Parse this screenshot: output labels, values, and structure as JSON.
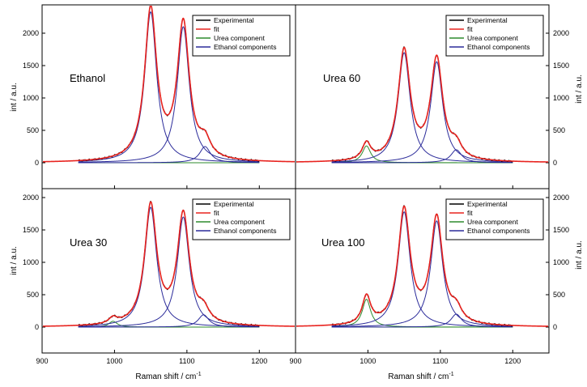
{
  "figure": {
    "xlabel": "Raman shift / cm",
    "xlabel_sup": "-1",
    "ylabel": "int / a.u.",
    "legend": [
      "Experimental",
      "fit",
      "Urea component",
      "Ethanol components"
    ],
    "colors": {
      "experimental": "#000000",
      "fit": "#e8231f",
      "urea": "#2e8b2e",
      "ethanol": "#2b2b9a"
    }
  },
  "chart_data": [
    {
      "type": "line",
      "label": "Ethanol",
      "xlim": [
        900,
        1250
      ],
      "ylim": [
        -300,
        2400
      ],
      "xticks": [
        900,
        1000,
        1100,
        1200
      ],
      "yticks": [
        0,
        500,
        1000,
        1500,
        2000
      ],
      "grid": false,
      "legend_position": "top-right",
      "ethanol_peaks": [
        [
          1050,
          2330,
          10
        ],
        [
          1095,
          2100,
          10
        ],
        [
          1125,
          250,
          9
        ]
      ],
      "urea_peaks": [],
      "fit_peak_values": {
        "1050": 2380,
        "1095": 2250,
        "1070": 950
      },
      "fit_range": [
        900,
        1250
      ],
      "components_range": [
        950,
        1200
      ]
    },
    {
      "type": "line",
      "label": "Urea 60",
      "xlim": [
        900,
        1250
      ],
      "ylim": [
        -300,
        2400
      ],
      "xticks": [
        900,
        1000,
        1100,
        1200
      ],
      "yticks": [
        0,
        500,
        1000,
        1500,
        2000
      ],
      "grid": false,
      "legend_position": "top-right",
      "ethanol_peaks": [
        [
          1050,
          1700,
          10
        ],
        [
          1095,
          1560,
          10
        ],
        [
          1122,
          200,
          9
        ]
      ],
      "urea_peaks": [
        [
          998,
          260,
          7
        ]
      ],
      "fit_peak_values": {
        "998": 350,
        "1050": 1800,
        "1095": 1680
      },
      "fit_range": [
        900,
        1250
      ],
      "components_range": [
        950,
        1200
      ]
    },
    {
      "type": "line",
      "label": "Urea 30",
      "xlim": [
        900,
        1250
      ],
      "ylim": [
        -300,
        2400
      ],
      "xticks": [
        900,
        1000,
        1100,
        1200
      ],
      "yticks": [
        0,
        500,
        1000,
        1500,
        2000
      ],
      "grid": false,
      "legend_position": "top-right",
      "ethanol_peaks": [
        [
          1050,
          1850,
          10
        ],
        [
          1095,
          1700,
          10
        ],
        [
          1123,
          190,
          9
        ]
      ],
      "urea_peaks": [
        [
          998,
          90,
          7
        ]
      ],
      "fit_peak_values": {
        "998": 190,
        "1050": 1930,
        "1095": 1830
      },
      "fit_range": [
        900,
        1250
      ],
      "components_range": [
        950,
        1200
      ]
    },
    {
      "type": "line",
      "label": "Urea 100",
      "xlim": [
        900,
        1250
      ],
      "ylim": [
        -300,
        2400
      ],
      "xticks": [
        900,
        1000,
        1100,
        1200
      ],
      "yticks": [
        0,
        500,
        1000,
        1500,
        2000
      ],
      "grid": false,
      "legend_position": "top-right",
      "ethanol_peaks": [
        [
          1050,
          1780,
          10
        ],
        [
          1095,
          1640,
          10
        ],
        [
          1122,
          200,
          9
        ]
      ],
      "urea_peaks": [
        [
          998,
          430,
          7
        ]
      ],
      "fit_peak_values": {
        "998": 530,
        "1050": 1920,
        "1095": 1810
      },
      "fit_range": [
        900,
        1250
      ],
      "components_range": [
        950,
        1200
      ]
    }
  ]
}
